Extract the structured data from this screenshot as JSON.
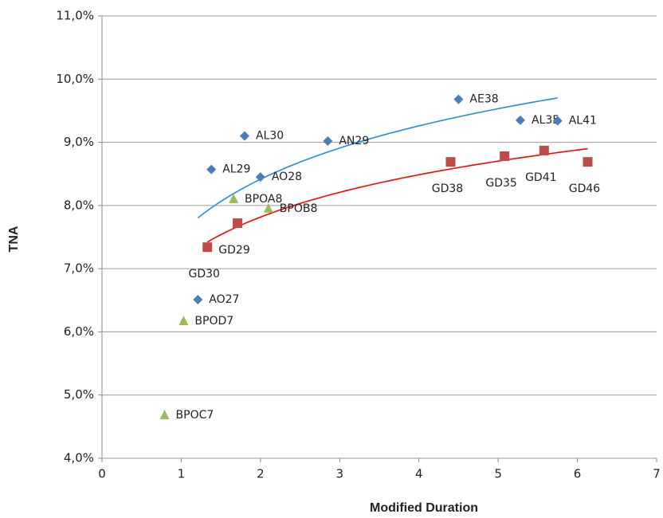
{
  "chart_data": {
    "type": "scatter",
    "x_label": "Modified Duration",
    "y_label": "TNA",
    "xlim": [
      0,
      7
    ],
    "xticks": [
      0,
      1,
      2,
      3,
      4,
      5,
      6,
      7
    ],
    "ylim": [
      4,
      11
    ],
    "yticks": [
      {
        "value": 4,
        "label": "4,0%"
      },
      {
        "value": 5,
        "label": "5,0%"
      },
      {
        "value": 6,
        "label": "6,0%"
      },
      {
        "value": 7,
        "label": "7,0%"
      },
      {
        "value": 8,
        "label": "8,0%"
      },
      {
        "value": 9,
        "label": "9,0%"
      },
      {
        "value": 10,
        "label": "10,0%"
      },
      {
        "value": 11,
        "label": "11,0%"
      }
    ],
    "grid": true,
    "series": [
      {
        "color": "#4a7ebb",
        "marker": "diamond",
        "trendline": "log",
        "trend_color": "#1f8fdc",
        "labels": [
          "AL29",
          "AL30",
          "AO28",
          "AN29",
          "AE38",
          "AL35",
          "AL41",
          "AO27"
        ],
        "x": [
          1.38,
          1.8,
          2.0,
          2.85,
          4.5,
          5.28,
          5.75,
          1.21
        ],
        "values": [
          8.57,
          9.1,
          8.45,
          9.02,
          9.68,
          9.35,
          9.34,
          6.51
        ]
      },
      {
        "color": "#be4b48",
        "marker": "square",
        "trendline": "log",
        "trend_color": "#ff0000",
        "labels": [
          "GD30",
          "GD29",
          "GD38",
          "GD35",
          "GD41",
          "GD46"
        ],
        "x": [
          1.33,
          1.71,
          4.4,
          5.08,
          5.58,
          6.13
        ],
        "values": [
          7.34,
          7.72,
          8.69,
          8.78,
          8.87,
          8.69
        ]
      },
      {
        "color": "#9bbb59",
        "marker": "triangle",
        "labels": [
          "BPOA8",
          "BPOB8",
          "BPOD7",
          "BPOC7"
        ],
        "x": [
          1.66,
          2.1,
          1.03,
          0.79
        ],
        "values": [
          8.1,
          7.95,
          6.17,
          4.68
        ]
      }
    ]
  }
}
